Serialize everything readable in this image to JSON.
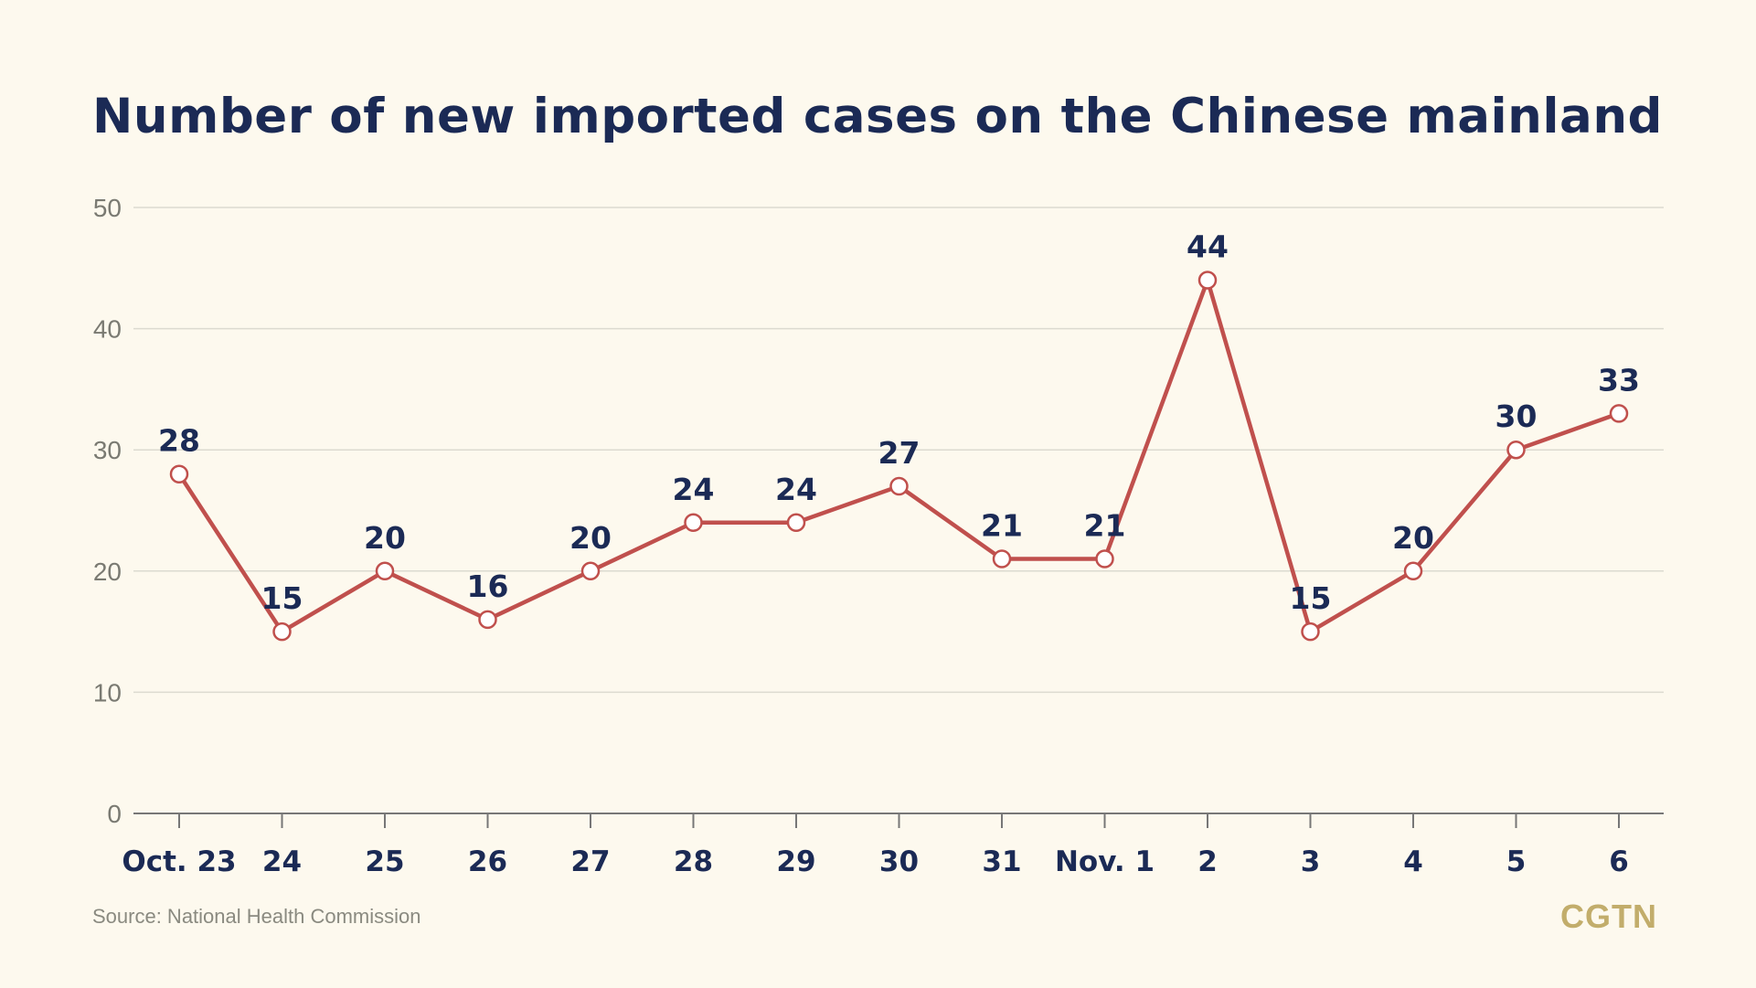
{
  "chart_data": {
    "type": "line",
    "title": "Number of new imported cases on the Chinese mainland",
    "categories": [
      "Oct. 23",
      "24",
      "25",
      "26",
      "27",
      "28",
      "29",
      "30",
      "31",
      "Nov. 1",
      "2",
      "3",
      "4",
      "5",
      "6"
    ],
    "series": [
      {
        "values": [
          28,
          15,
          20,
          16,
          20,
          24,
          24,
          27,
          21,
          21,
          44,
          15,
          20,
          30,
          33
        ]
      }
    ],
    "ylim": [
      0,
      50
    ],
    "yticks": [
      0,
      10,
      20,
      30,
      40,
      50
    ],
    "grid": true,
    "line_color": "#c0504d",
    "marker_fill": "#ffffff"
  },
  "footer": {
    "source": "Source: National Health Commission",
    "logo": "CGTN"
  },
  "colors": {
    "background": "#fdf9ee",
    "title": "#1b2a55",
    "gridline": "#dcdad0",
    "axis": "#777777",
    "logo": "#c2ad6b"
  }
}
